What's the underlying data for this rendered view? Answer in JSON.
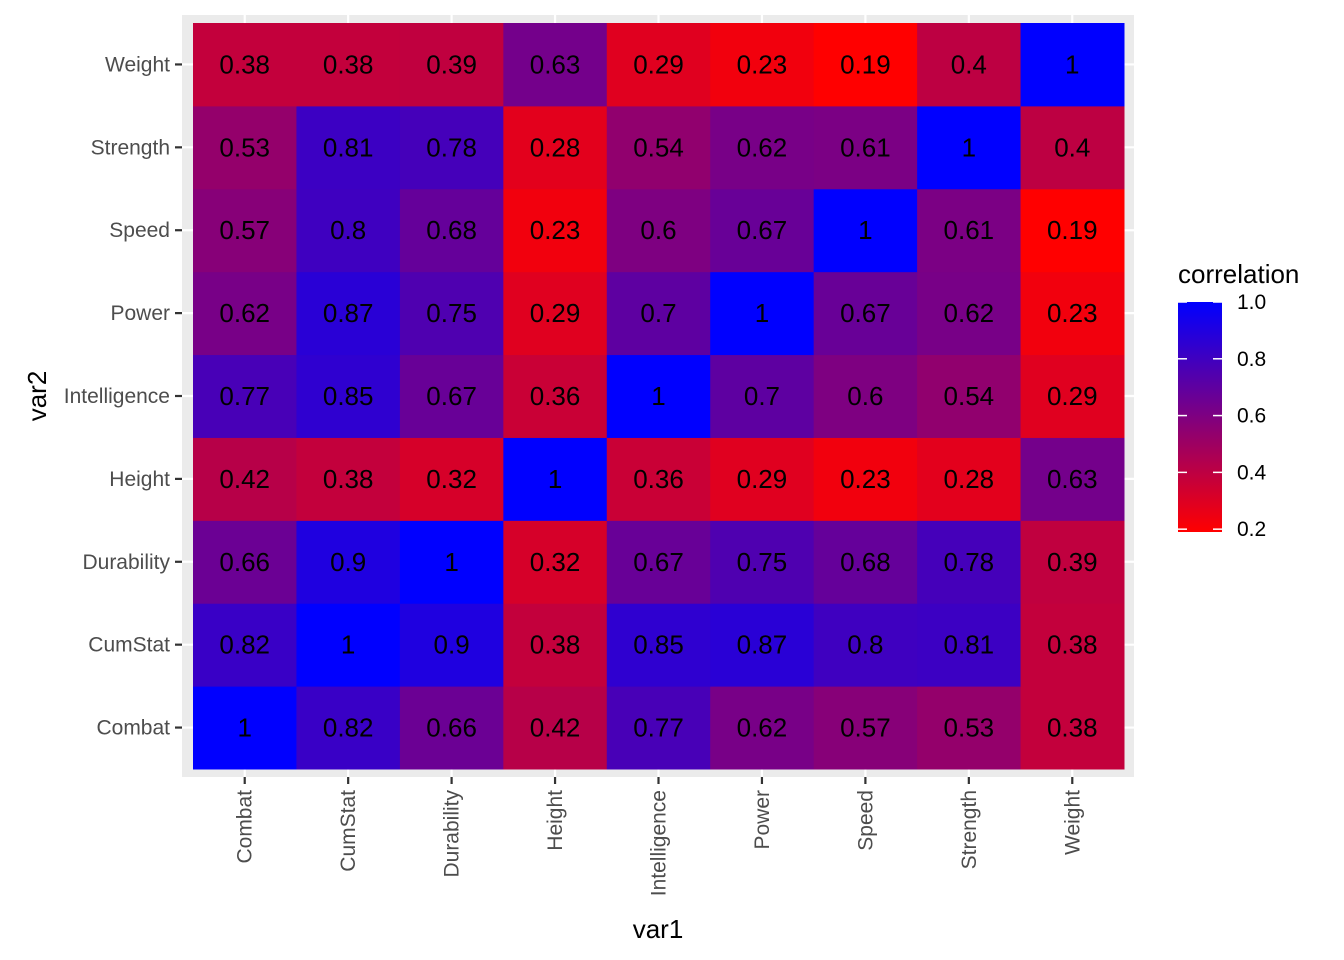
{
  "chart_data": {
    "type": "heatmap",
    "title": "",
    "xlabel": "var1",
    "ylabel": "var2",
    "x_categories": [
      "Combat",
      "CumStat",
      "Durability",
      "Height",
      "Intelligence",
      "Power",
      "Speed",
      "Strength",
      "Weight"
    ],
    "y_categories": [
      "Combat",
      "CumStat",
      "Durability",
      "Height",
      "Intelligence",
      "Power",
      "Speed",
      "Strength",
      "Weight"
    ],
    "matrix": [
      [
        1,
        0.82,
        0.66,
        0.42,
        0.77,
        0.62,
        0.57,
        0.53,
        0.38
      ],
      [
        0.82,
        1,
        0.9,
        0.38,
        0.85,
        0.87,
        0.8,
        0.81,
        0.38
      ],
      [
        0.66,
        0.9,
        1,
        0.32,
        0.67,
        0.75,
        0.68,
        0.78,
        0.39
      ],
      [
        0.42,
        0.38,
        0.32,
        1,
        0.36,
        0.29,
        0.23,
        0.28,
        0.63
      ],
      [
        0.77,
        0.85,
        0.67,
        0.36,
        1,
        0.7,
        0.6,
        0.54,
        0.29
      ],
      [
        0.62,
        0.87,
        0.75,
        0.29,
        0.7,
        1,
        0.67,
        0.62,
        0.23
      ],
      [
        0.57,
        0.8,
        0.68,
        0.23,
        0.6,
        0.67,
        1,
        0.61,
        0.19
      ],
      [
        0.53,
        0.81,
        0.78,
        0.28,
        0.54,
        0.62,
        0.61,
        1,
        0.4
      ],
      [
        0.38,
        0.38,
        0.39,
        0.63,
        0.29,
        0.23,
        0.19,
        0.4,
        1
      ]
    ],
    "labels": [
      [
        "1",
        "0.82",
        "0.66",
        "0.42",
        "0.77",
        "0.62",
        "0.57",
        "0.53",
        "0.38"
      ],
      [
        "0.82",
        "1",
        "0.9",
        "0.38",
        "0.85",
        "0.87",
        "0.8",
        "0.81",
        "0.38"
      ],
      [
        "0.66",
        "0.9",
        "1",
        "0.32",
        "0.67",
        "0.75",
        "0.68",
        "0.78",
        "0.39"
      ],
      [
        "0.42",
        "0.38",
        "0.32",
        "1",
        "0.36",
        "0.29",
        "0.23",
        "0.28",
        "0.63"
      ],
      [
        "0.77",
        "0.85",
        "0.67",
        "0.36",
        "1",
        "0.7",
        "0.6",
        "0.54",
        "0.29"
      ],
      [
        "0.62",
        "0.87",
        "0.75",
        "0.29",
        "0.7",
        "1",
        "0.67",
        "0.62",
        "0.23"
      ],
      [
        "0.57",
        "0.8",
        "0.68",
        "0.23",
        "0.6",
        "0.67",
        "1",
        "0.61",
        "0.19"
      ],
      [
        "0.53",
        "0.81",
        "0.78",
        "0.28",
        "0.54",
        "0.62",
        "0.61",
        "1",
        "0.4"
      ],
      [
        "0.38",
        "0.38",
        "0.39",
        "0.63",
        "0.29",
        "0.23",
        "0.19",
        "0.4",
        "1"
      ]
    ],
    "color_scale": {
      "low": "#ff0000",
      "high": "#0000ff",
      "range": [
        0.19,
        1
      ]
    },
    "legend": {
      "title": "correlation",
      "ticks": [
        1.0,
        0.8,
        0.6,
        0.4,
        0.2
      ],
      "tick_labels": [
        "1.0",
        "0.8",
        "0.6",
        "0.4",
        "0.2"
      ],
      "placement": "right"
    },
    "panel_background": "#ebebeb",
    "grid": true
  }
}
